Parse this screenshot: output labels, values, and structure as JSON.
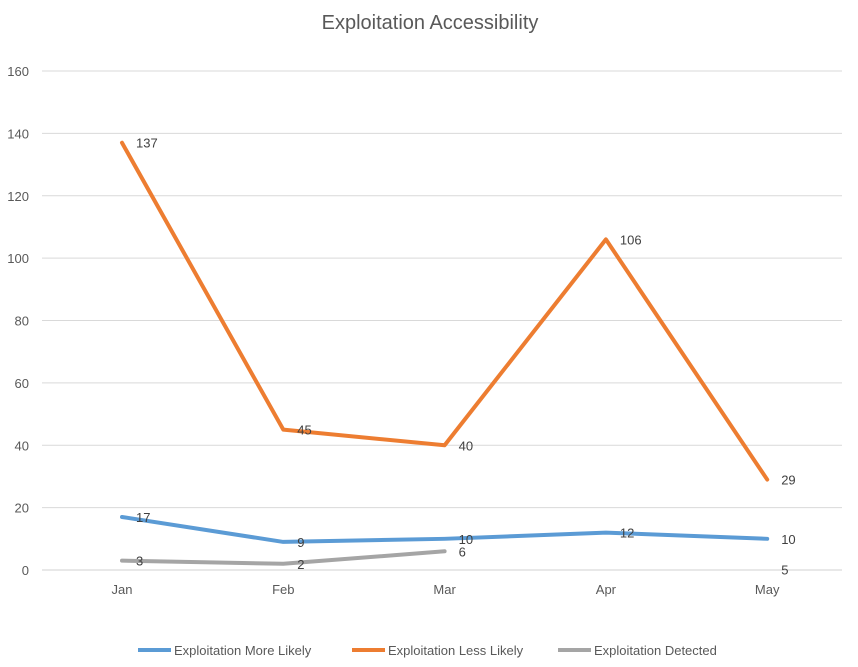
{
  "chart_data": {
    "type": "line",
    "title": "Exploitation Accessibility",
    "categories": [
      "Jan",
      "Feb",
      "Mar",
      "Apr",
      "May"
    ],
    "ylim": [
      0,
      160
    ],
    "yticks": [
      0,
      20,
      40,
      60,
      80,
      100,
      120,
      140,
      160
    ],
    "grid": true,
    "legend": "bottom",
    "series": [
      {
        "name": "Exploitation More Likely",
        "color": "#5B9BD5",
        "values": [
          17,
          9,
          10,
          12,
          10
        ]
      },
      {
        "name": "Exploitation Less Likely",
        "color": "#ED7D31",
        "values": [
          137,
          45,
          40,
          106,
          29
        ]
      },
      {
        "name": "Exploitation Detected",
        "color": "#A5A5A5",
        "values": [
          3,
          2,
          6,
          null,
          5
        ]
      }
    ]
  }
}
